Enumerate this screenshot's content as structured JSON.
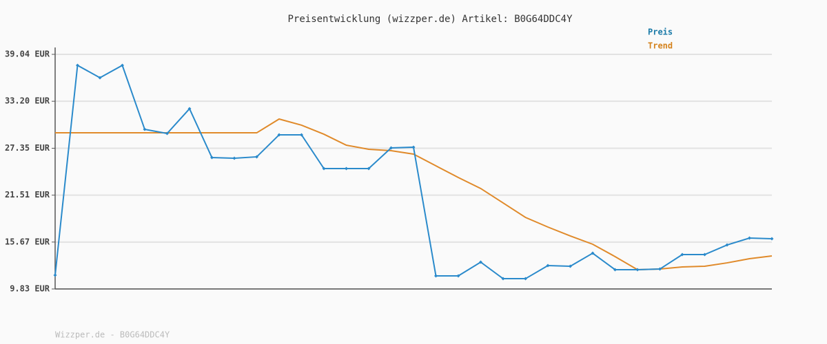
{
  "chart_data": {
    "type": "line",
    "title": "Preisentwicklung (wizzper.de) Artikel: B0G64DDC4Y",
    "footer": "Wizzper.de - B0G64DDC4Y",
    "ylim": [
      9.83,
      39.04
    ],
    "yticks": [
      {
        "value": 9.83,
        "label": "9.83 EUR"
      },
      {
        "value": 15.67,
        "label": "15.67 EUR"
      },
      {
        "value": 21.51,
        "label": "21.51 EUR"
      },
      {
        "value": 27.35,
        "label": "27.35 EUR"
      },
      {
        "value": 33.2,
        "label": "33.20 EUR"
      },
      {
        "value": 39.04,
        "label": "39.04 EUR"
      }
    ],
    "grid": true,
    "legend": "top-right",
    "series": [
      {
        "name": "Preis",
        "color": "#2a8acb",
        "label_color": "#1a7aa8",
        "markers": true,
        "values": [
          11.54,
          37.67,
          36.13,
          37.67,
          29.7,
          29.19,
          32.27,
          26.19,
          26.11,
          26.28,
          29.02,
          29.02,
          24.82,
          24.82,
          24.82,
          27.39,
          27.48,
          11.46,
          11.46,
          13.17,
          11.11,
          11.11,
          12.74,
          12.66,
          14.28,
          12.23,
          12.23,
          12.31,
          14.11,
          14.11,
          15.31,
          16.17,
          16.08
        ]
      },
      {
        "name": "Trend",
        "color": "#e08a2a",
        "label_color": "#d4821c",
        "markers": false,
        "values": [
          29.27,
          29.27,
          29.27,
          29.27,
          29.27,
          29.27,
          29.27,
          29.27,
          29.27,
          29.27,
          30.99,
          30.22,
          29.1,
          27.73,
          27.22,
          27.05,
          26.62,
          25.16,
          23.71,
          22.34,
          20.54,
          18.74,
          17.54,
          16.43,
          15.4,
          13.86,
          12.23,
          12.31,
          12.57,
          12.66,
          13.08,
          13.6,
          13.94
        ]
      }
    ]
  }
}
